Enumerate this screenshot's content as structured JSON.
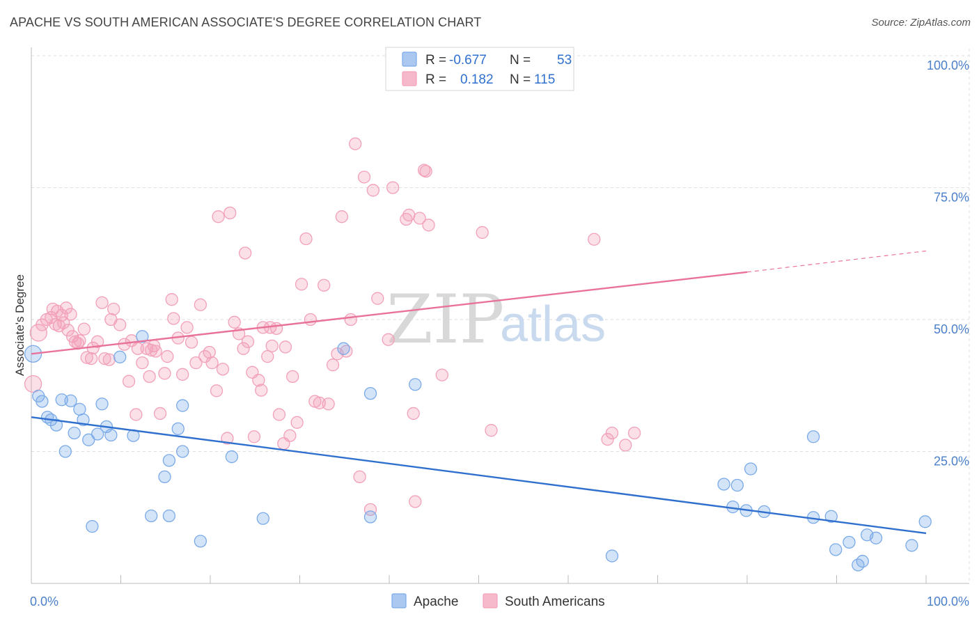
{
  "title": "APACHE VS SOUTH AMERICAN ASSOCIATE'S DEGREE CORRELATION CHART",
  "source": "Source: ZipAtlas.com",
  "watermark": {
    "zip": "ZIP",
    "atlas": "atlas"
  },
  "legend": {
    "rows": [
      {
        "r_label": "R =",
        "r_value": "-0.677",
        "n_label": "N =",
        "n_value": "53",
        "color": "#aac8f0"
      },
      {
        "r_label": "R =",
        "r_value": "0.182",
        "n_label": "N =",
        "n_value": "115",
        "color": "#f6b8cb"
      }
    ]
  },
  "chart_data": {
    "type": "scatter",
    "title": "APACHE VS SOUTH AMERICAN ASSOCIATE'S DEGREE CORRELATION CHART",
    "xlabel": "",
    "ylabel": "Associate's Degree",
    "xlim": [
      0,
      100
    ],
    "ylim": [
      0,
      100
    ],
    "x_tick_labels": [
      "0.0%",
      "100.0%"
    ],
    "y_tick_labels": [
      "100.0%",
      "75.0%",
      "50.0%",
      "25.0%"
    ],
    "y_tick_values": [
      100,
      75,
      50,
      25
    ],
    "grid": true,
    "legend_position": "top-center",
    "series": [
      {
        "name": "Apache",
        "color": "#7aaae8",
        "line_color": "#2f6fce",
        "trend": {
          "x": [
            0,
            100
          ],
          "y": [
            31.5,
            9.5
          ]
        },
        "points": [
          [
            0.2,
            43.5
          ],
          [
            0.8,
            35.5
          ],
          [
            1.2,
            34.5
          ],
          [
            1.8,
            31.5
          ],
          [
            2.2,
            31
          ],
          [
            2.8,
            30
          ],
          [
            3.8,
            25
          ],
          [
            3.4,
            34.8
          ],
          [
            4.4,
            34.6
          ],
          [
            4.8,
            28.5
          ],
          [
            5.4,
            33
          ],
          [
            5.8,
            31
          ],
          [
            6.4,
            27.2
          ],
          [
            6.8,
            10.8
          ],
          [
            7.4,
            28.3
          ],
          [
            7.9,
            34
          ],
          [
            8.4,
            29.7
          ],
          [
            8.9,
            28.1
          ],
          [
            9.9,
            42.9
          ],
          [
            11.4,
            28
          ],
          [
            12.4,
            46.8
          ],
          [
            13.4,
            12.8
          ],
          [
            14.9,
            20.2
          ],
          [
            15.4,
            23.3
          ],
          [
            15.4,
            12.8
          ],
          [
            16.4,
            29.3
          ],
          [
            16.9,
            33.7
          ],
          [
            16.9,
            25
          ],
          [
            18.9,
            8
          ],
          [
            22.4,
            24
          ],
          [
            25.9,
            12.3
          ],
          [
            34.9,
            44.5
          ],
          [
            37.9,
            12.6
          ],
          [
            37.9,
            36
          ],
          [
            42.9,
            37.7
          ],
          [
            64.9,
            5.2
          ],
          [
            77.4,
            18.8
          ],
          [
            78.9,
            18.6
          ],
          [
            78.4,
            14.5
          ],
          [
            79.9,
            13.8
          ],
          [
            80.4,
            21.7
          ],
          [
            81.9,
            13.6
          ],
          [
            87.4,
            12.5
          ],
          [
            87.4,
            27.8
          ],
          [
            89.4,
            12.7
          ],
          [
            89.9,
            6.4
          ],
          [
            91.4,
            7.8
          ],
          [
            92.4,
            3.5
          ],
          [
            92.9,
            4.2
          ],
          [
            93.4,
            9.2
          ],
          [
            94.4,
            8.6
          ],
          [
            98.4,
            7.2
          ],
          [
            99.9,
            11.7
          ]
        ]
      },
      {
        "name": "South Americans",
        "color": "#f2a0b8",
        "line_color": "#e8729a",
        "trend": {
          "x": [
            0,
            80,
            100
          ],
          "y": [
            43.5,
            59,
            63
          ]
        },
        "points": [
          [
            0.2,
            37.8
          ],
          [
            0.8,
            47.5
          ],
          [
            1.2,
            49
          ],
          [
            1.7,
            50
          ],
          [
            2.2,
            50.4
          ],
          [
            2.4,
            52
          ],
          [
            2.7,
            49.1
          ],
          [
            2.9,
            51.6
          ],
          [
            3.1,
            48.8
          ],
          [
            3.4,
            50.8
          ],
          [
            3.6,
            49.4
          ],
          [
            3.9,
            52.2
          ],
          [
            4.1,
            48
          ],
          [
            4.4,
            51
          ],
          [
            4.6,
            46.8
          ],
          [
            4.9,
            45.8
          ],
          [
            5.2,
            45.5
          ],
          [
            5.4,
            46
          ],
          [
            5.9,
            48.2
          ],
          [
            6.2,
            42.8
          ],
          [
            6.7,
            42.6
          ],
          [
            6.9,
            44.6
          ],
          [
            7.4,
            45.8
          ],
          [
            7.9,
            53.2
          ],
          [
            8.2,
            42.6
          ],
          [
            8.7,
            42.4
          ],
          [
            8.9,
            50
          ],
          [
            9.2,
            52
          ],
          [
            9.9,
            49
          ],
          [
            10.4,
            45.3
          ],
          [
            10.9,
            38.3
          ],
          [
            11.2,
            46
          ],
          [
            11.7,
            32
          ],
          [
            11.9,
            44.5
          ],
          [
            12.4,
            41.8
          ],
          [
            12.9,
            44.5
          ],
          [
            13.2,
            39.2
          ],
          [
            13.4,
            44.2
          ],
          [
            13.7,
            45
          ],
          [
            13.9,
            44
          ],
          [
            14.4,
            32.2
          ],
          [
            14.9,
            39.8
          ],
          [
            15.2,
            43
          ],
          [
            15.7,
            53.8
          ],
          [
            15.9,
            50.2
          ],
          [
            16.4,
            46.5
          ],
          [
            16.9,
            39.6
          ],
          [
            17.4,
            48.5
          ],
          [
            17.9,
            45.7
          ],
          [
            18.4,
            41.8
          ],
          [
            18.9,
            52.8
          ],
          [
            19.4,
            43
          ],
          [
            19.9,
            43.8
          ],
          [
            20.2,
            41.8
          ],
          [
            20.7,
            36.5
          ],
          [
            20.9,
            69.5
          ],
          [
            21.4,
            40.6
          ],
          [
            21.9,
            27.5
          ],
          [
            22.2,
            70.2
          ],
          [
            22.7,
            49.5
          ],
          [
            23.2,
            47.3
          ],
          [
            23.7,
            44.5
          ],
          [
            23.9,
            62.6
          ],
          [
            24.2,
            45.8
          ],
          [
            24.7,
            40
          ],
          [
            24.9,
            27.8
          ],
          [
            25.4,
            38.5
          ],
          [
            25.7,
            36.6
          ],
          [
            25.9,
            48.5
          ],
          [
            26.4,
            43
          ],
          [
            26.7,
            48.5
          ],
          [
            26.9,
            45
          ],
          [
            27.4,
            48.3
          ],
          [
            27.7,
            32
          ],
          [
            28.2,
            26.5
          ],
          [
            28.4,
            44.8
          ],
          [
            28.9,
            28
          ],
          [
            29.2,
            39.2
          ],
          [
            29.7,
            30.5
          ],
          [
            30.2,
            56.7
          ],
          [
            30.7,
            65.3
          ],
          [
            31.2,
            50
          ],
          [
            31.7,
            34.5
          ],
          [
            32.2,
            34.2
          ],
          [
            32.7,
            56.5
          ],
          [
            33.2,
            34
          ],
          [
            33.7,
            41.4
          ],
          [
            34.2,
            43.5
          ],
          [
            34.7,
            69.5
          ],
          [
            35.2,
            44
          ],
          [
            35.7,
            50
          ],
          [
            36.2,
            83.3
          ],
          [
            36.7,
            20.2
          ],
          [
            37.2,
            77
          ],
          [
            37.9,
            14
          ],
          [
            38.2,
            74.5
          ],
          [
            38.7,
            54
          ],
          [
            39.9,
            46.2
          ],
          [
            40.4,
            75
          ],
          [
            41.9,
            69
          ],
          [
            42.2,
            69.8
          ],
          [
            42.7,
            32.2
          ],
          [
            42.9,
            15.5
          ],
          [
            43.4,
            69.2
          ],
          [
            43.9,
            78.3
          ],
          [
            44.1,
            78.1
          ],
          [
            44.4,
            67.9
          ],
          [
            45.9,
            39.5
          ],
          [
            50.4,
            66.5
          ],
          [
            51.4,
            29
          ],
          [
            62.9,
            65.2
          ],
          [
            64.4,
            27.3
          ],
          [
            64.9,
            28.5
          ],
          [
            66.4,
            26.2
          ],
          [
            67.4,
            28.5
          ]
        ]
      }
    ]
  }
}
